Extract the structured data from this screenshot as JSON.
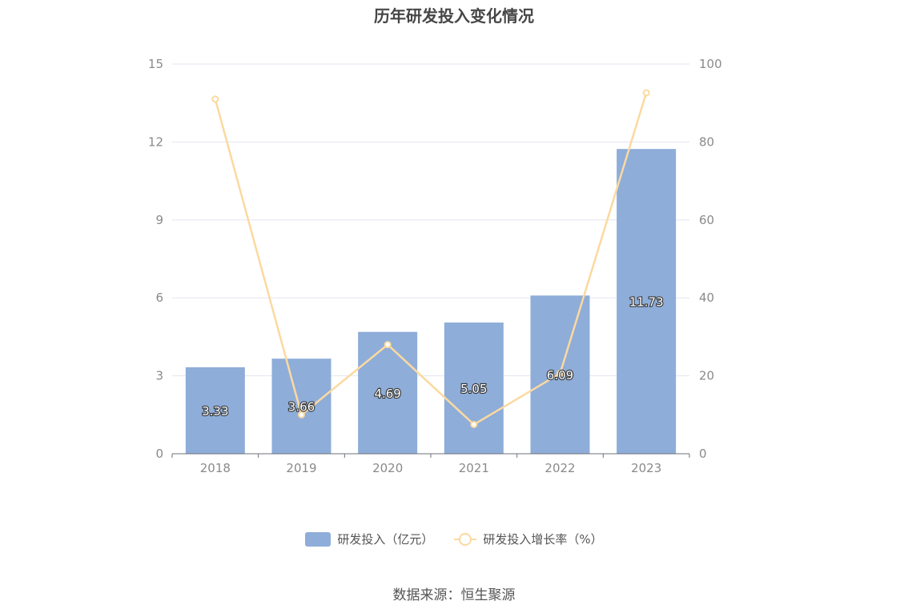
{
  "chart_data": {
    "type": "bar",
    "title": "历年研发投入变化情况",
    "categories": [
      "2018",
      "2019",
      "2020",
      "2021",
      "2022",
      "2023"
    ],
    "series": [
      {
        "name": "研发投入（亿元）",
        "type": "bar",
        "axis": "left",
        "color": "#8eadd9",
        "values": [
          3.33,
          3.66,
          4.69,
          5.05,
          6.09,
          11.73
        ]
      },
      {
        "name": "研发投入增长率（%）",
        "type": "line",
        "axis": "right",
        "color": "#fbd9a0",
        "values": [
          91,
          10,
          28,
          7.5,
          20.6,
          92.6
        ]
      }
    ],
    "y_left": {
      "min": 0,
      "max": 15,
      "ticks": [
        0,
        3,
        6,
        9,
        12,
        15
      ]
    },
    "y_right": {
      "min": 0,
      "max": 100,
      "ticks": [
        0,
        20,
        40,
        60,
        80,
        100
      ]
    },
    "grid": true,
    "legend_position": "bottom"
  },
  "source_text": "数据来源：恒生聚源"
}
